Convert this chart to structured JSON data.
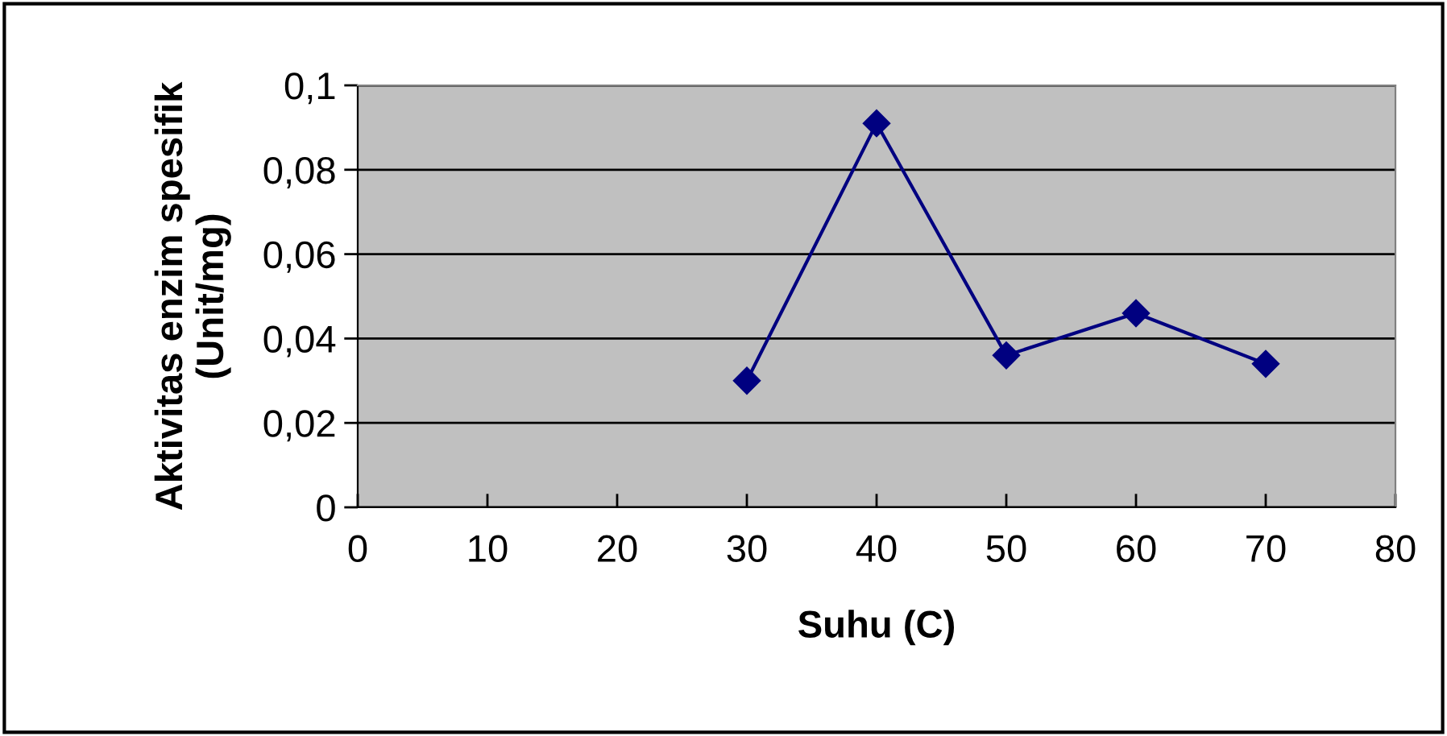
{
  "chart_data": {
    "type": "line",
    "xlabel": "Suhu (C)",
    "ylabel": "Aktivitas enzim spesifik\n(Unit/mg)",
    "x": [
      30,
      40,
      50,
      60,
      70
    ],
    "series": [
      {
        "color": "#000080",
        "values": [
          0.03,
          0.091,
          0.036,
          0.046,
          0.034
        ]
      }
    ],
    "xlim": [
      0,
      80
    ],
    "xticks": [
      0,
      10,
      20,
      30,
      40,
      50,
      60,
      70,
      80
    ],
    "ylim": [
      0,
      0.1
    ],
    "yticks": [
      {
        "value": 0,
        "label": "0"
      },
      {
        "value": 0.02,
        "label": "0,02"
      },
      {
        "value": 0.04,
        "label": "0,04"
      },
      {
        "value": 0.06,
        "label": "0,06"
      },
      {
        "value": 0.08,
        "label": "0,08"
      },
      {
        "value": 0.1,
        "label": "0,1"
      }
    ],
    "grid": "y",
    "marker": "diamond",
    "line_style": "solid",
    "legend": false
  }
}
